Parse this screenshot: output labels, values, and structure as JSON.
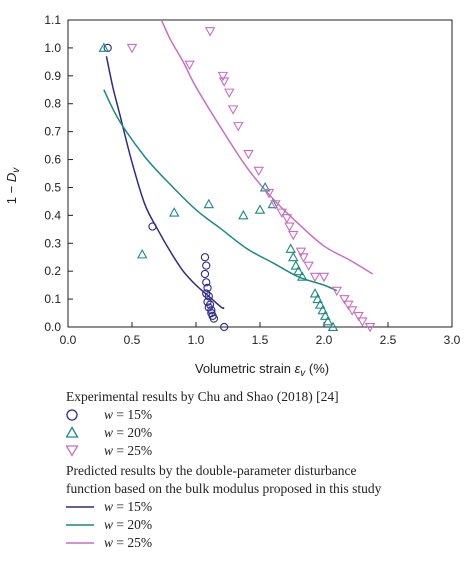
{
  "chart_data": {
    "type": "scatter",
    "xlabel_prefix": "Volumetric strain ",
    "xlabel_symbol": "ε",
    "xlabel_sub": "v",
    "xlabel_suffix": " (%)",
    "ylabel_prefix": "1 − ",
    "ylabel_symbol": "D",
    "ylabel_sub": "v",
    "xlim": [
      0.0,
      3.0
    ],
    "ylim": [
      0.0,
      1.1
    ],
    "xticks": [
      "0.0",
      "0.5",
      "1.0",
      "1.5",
      "2.0",
      "2.5",
      "3.0"
    ],
    "yticks": [
      "0.0",
      "0.1",
      "0.2",
      "0.3",
      "0.4",
      "0.5",
      "0.6",
      "0.7",
      "0.8",
      "0.9",
      "1.0",
      "1.1"
    ],
    "grid": false,
    "colors": {
      "w15": "#2e2a8c",
      "w20": "#1c8a80",
      "w25": "#c86ec2"
    },
    "scatter_series": [
      {
        "name": "w = 15%",
        "marker": "circle",
        "color": "#2e2a8c",
        "points": [
          [
            0.31,
            1.0
          ],
          [
            0.66,
            0.36
          ],
          [
            1.07,
            0.25
          ],
          [
            1.08,
            0.22
          ],
          [
            1.07,
            0.19
          ],
          [
            1.08,
            0.16
          ],
          [
            1.09,
            0.14
          ],
          [
            1.08,
            0.12
          ],
          [
            1.1,
            0.11
          ],
          [
            1.09,
            0.09
          ],
          [
            1.11,
            0.08
          ],
          [
            1.1,
            0.07
          ],
          [
            1.12,
            0.06
          ],
          [
            1.12,
            0.05
          ],
          [
            1.13,
            0.04
          ],
          [
            1.14,
            0.03
          ],
          [
            1.22,
            0.0
          ]
        ]
      },
      {
        "name": "w = 20%",
        "marker": "triangle-up",
        "color": "#1c8a80",
        "points": [
          [
            0.28,
            1.0
          ],
          [
            0.58,
            0.26
          ],
          [
            0.83,
            0.41
          ],
          [
            1.1,
            0.44
          ],
          [
            1.37,
            0.4
          ],
          [
            1.5,
            0.42
          ],
          [
            1.54,
            0.5
          ],
          [
            1.6,
            0.44
          ],
          [
            1.74,
            0.28
          ],
          [
            1.76,
            0.25
          ],
          [
            1.78,
            0.22
          ],
          [
            1.8,
            0.2
          ],
          [
            1.83,
            0.18
          ],
          [
            1.93,
            0.12
          ],
          [
            1.95,
            0.1
          ],
          [
            1.97,
            0.08
          ],
          [
            1.99,
            0.06
          ],
          [
            2.01,
            0.04
          ],
          [
            2.03,
            0.02
          ],
          [
            2.07,
            0.0
          ]
        ]
      },
      {
        "name": "w = 25%",
        "marker": "triangle-down",
        "color": "#c86ec2",
        "points": [
          [
            0.5,
            1.0
          ],
          [
            1.11,
            1.06
          ],
          [
            0.95,
            0.94
          ],
          [
            1.21,
            0.9
          ],
          [
            1.22,
            0.88
          ],
          [
            1.26,
            0.84
          ],
          [
            1.29,
            0.78
          ],
          [
            1.33,
            0.72
          ],
          [
            1.41,
            0.62
          ],
          [
            1.49,
            0.56
          ],
          [
            1.57,
            0.48
          ],
          [
            1.62,
            0.44
          ],
          [
            1.67,
            0.41
          ],
          [
            1.71,
            0.39
          ],
          [
            1.73,
            0.36
          ],
          [
            1.76,
            0.33
          ],
          [
            1.82,
            0.27
          ],
          [
            1.84,
            0.25
          ],
          [
            1.88,
            0.22
          ],
          [
            1.93,
            0.18
          ],
          [
            2.0,
            0.18
          ],
          [
            2.1,
            0.13
          ],
          [
            2.16,
            0.1
          ],
          [
            2.19,
            0.08
          ],
          [
            2.22,
            0.06
          ],
          [
            2.27,
            0.04
          ],
          [
            2.3,
            0.02
          ],
          [
            2.36,
            0.0
          ]
        ]
      }
    ],
    "line_series": [
      {
        "name": "w = 15%",
        "color": "#2e2a8c",
        "x": [
          0.3,
          0.35,
          0.4,
          0.5,
          0.6,
          0.7,
          0.8,
          0.9,
          1.0,
          1.1,
          1.2,
          1.22
        ],
        "y": [
          0.97,
          0.86,
          0.77,
          0.59,
          0.44,
          0.35,
          0.27,
          0.2,
          0.15,
          0.11,
          0.07,
          0.07
        ]
      },
      {
        "name": "w = 20%",
        "color": "#1c8a80",
        "x": [
          0.28,
          0.4,
          0.6,
          0.8,
          1.0,
          1.2,
          1.4,
          1.6,
          1.8,
          2.0,
          2.1
        ],
        "y": [
          0.85,
          0.74,
          0.61,
          0.51,
          0.42,
          0.35,
          0.28,
          0.23,
          0.18,
          0.15,
          0.13
        ]
      },
      {
        "name": "w = 25%",
        "color": "#c86ec2",
        "x": [
          0.73,
          0.8,
          0.9,
          1.0,
          1.2,
          1.4,
          1.6,
          1.8,
          2.0,
          2.2,
          2.38
        ],
        "y": [
          1.1,
          1.03,
          0.95,
          0.86,
          0.71,
          0.57,
          0.46,
          0.37,
          0.29,
          0.24,
          0.19
        ]
      }
    ]
  },
  "legend": {
    "experimental_heading": "Experimental results by Chu and Shao (2018) [24]",
    "experimental_items": [
      "15%",
      "20%",
      "25%"
    ],
    "predicted_heading_line1": "Predicted results by the double-parameter disturbance",
    "predicted_heading_line2": "function based on the bulk modulus proposed in this study",
    "predicted_items": [
      "15%",
      "20%",
      "25%"
    ],
    "w_symbol": "w",
    "equals": " = "
  }
}
